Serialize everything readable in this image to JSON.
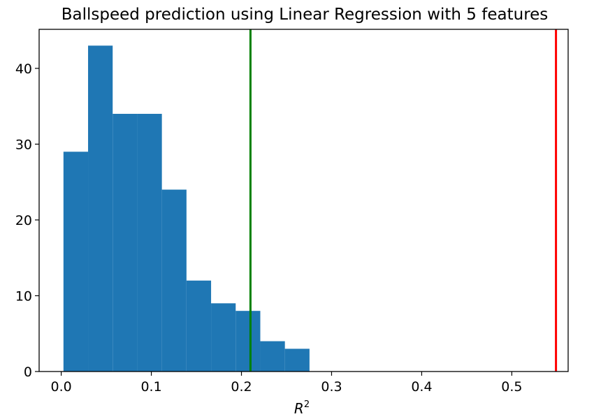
{
  "chart_data": {
    "type": "bar",
    "title": "Ballspeed prediction using Linear Regression with 5 features",
    "xlabel_base": "R",
    "xlabel_sup": "2",
    "ylabel": "",
    "xlim": [
      -0.0245,
      0.5625
    ],
    "ylim": [
      0,
      45.15
    ],
    "x_ticks": [
      0.0,
      0.1,
      0.2,
      0.3,
      0.4,
      0.5
    ],
    "x_tick_labels": [
      "0.0",
      "0.1",
      "0.2",
      "0.3",
      "0.4",
      "0.5"
    ],
    "y_ticks": [
      0,
      10,
      20,
      30,
      40
    ],
    "y_tick_labels": [
      "0",
      "10",
      "20",
      "30",
      "40"
    ],
    "bin_edges": [
      0.0025,
      0.0298,
      0.0571,
      0.0844,
      0.1117,
      0.139,
      0.1663,
      0.1936,
      0.2209,
      0.2482,
      0.2755
    ],
    "counts": [
      29,
      43,
      34,
      34,
      24,
      12,
      9,
      8,
      4,
      3
    ],
    "bar_color": "#1f77b4",
    "vertical_lines": [
      {
        "x": 0.21,
        "color": "#008000"
      },
      {
        "x": 0.549,
        "color": "#ff0000"
      }
    ],
    "grid": false,
    "legend": false
  }
}
